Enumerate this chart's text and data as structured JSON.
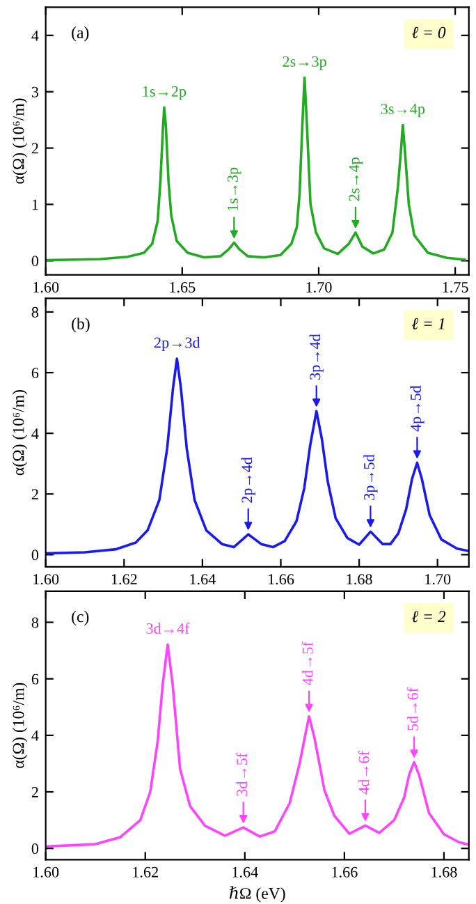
{
  "chart_data": [
    {
      "type": "line",
      "ylabel": "α(Ω) (10⁶/m)",
      "xlim": [
        1.6,
        1.755
      ],
      "ylim": [
        -0.25,
        4.5
      ],
      "xticks": [
        {
          "value": 1.6,
          "label": "1.60"
        },
        {
          "value": 1.65,
          "label": "1.65"
        },
        {
          "value": 1.7,
          "label": "1.70"
        },
        {
          "value": 1.75,
          "label": "1.75"
        }
      ],
      "yticks": [
        0,
        1,
        2,
        3,
        4
      ],
      "grid": false,
      "legend": false,
      "marker": "none",
      "line_style": "solid",
      "series": [
        {
          "color": "#22aa22",
          "x": [
            1.6,
            1.62,
            1.63,
            1.636,
            1.639,
            1.641,
            1.642,
            1.643,
            1.6434,
            1.644,
            1.645,
            1.646,
            1.648,
            1.652,
            1.658,
            1.664,
            1.667,
            1.669,
            1.671,
            1.674,
            1.68,
            1.686,
            1.69,
            1.692,
            1.693,
            1.694,
            1.6948,
            1.6955,
            1.697,
            1.699,
            1.702,
            1.707,
            1.711,
            1.7135,
            1.716,
            1.72,
            1.724,
            1.727,
            1.729,
            1.7302,
            1.7308,
            1.7315,
            1.733,
            1.735,
            1.74,
            1.747,
            1.7535
          ],
          "values": [
            0.01,
            0.03,
            0.07,
            0.14,
            0.3,
            0.7,
            1.4,
            2.4,
            2.72,
            2.4,
            1.4,
            0.8,
            0.35,
            0.14,
            0.06,
            0.08,
            0.2,
            0.32,
            0.2,
            0.08,
            0.06,
            0.1,
            0.3,
            0.6,
            1.2,
            2.4,
            3.25,
            2.6,
            1.0,
            0.5,
            0.22,
            0.12,
            0.3,
            0.5,
            0.25,
            0.13,
            0.2,
            0.5,
            1.3,
            2.0,
            2.41,
            2.0,
            1.0,
            0.45,
            0.14,
            0.05,
            0.02
          ]
        }
      ],
      "annotations": [
        "(a)",
        "ℓ = 0",
        {
          "text": "1s→2p",
          "x": 1.6434,
          "y": 2.72
        },
        {
          "text": "1s→3p",
          "x": 1.669,
          "y": 0.32
        },
        {
          "text": "2s→3p",
          "x": 1.6948,
          "y": 3.25
        },
        {
          "text": "2s→4p",
          "x": 1.7135,
          "y": 0.5
        },
        {
          "text": "3s→4p",
          "x": 1.7308,
          "y": 2.41
        }
      ]
    },
    {
      "type": "line",
      "ylabel": "α(Ω) (10⁶/m)",
      "xlim": [
        1.6,
        1.708
      ],
      "ylim": [
        -0.4,
        8.45
      ],
      "xticks": [
        {
          "value": 1.6,
          "label": "1.60"
        },
        {
          "value": 1.62,
          "label": "1.62"
        },
        {
          "value": 1.64,
          "label": "1.64"
        },
        {
          "value": 1.66,
          "label": "1.66"
        },
        {
          "value": 1.68,
          "label": "1.68"
        },
        {
          "value": 1.7,
          "label": "1.70"
        }
      ],
      "yticks": [
        0,
        2,
        4,
        6,
        8
      ],
      "grid": false,
      "legend": false,
      "marker": "none",
      "line_style": "solid",
      "series": [
        {
          "color": "#1a1aee",
          "x": [
            1.6,
            1.61,
            1.618,
            1.623,
            1.626,
            1.629,
            1.631,
            1.6325,
            1.6335,
            1.6345,
            1.636,
            1.638,
            1.641,
            1.645,
            1.648,
            1.6517,
            1.655,
            1.658,
            1.661,
            1.664,
            1.666,
            1.6675,
            1.6691,
            1.6705,
            1.672,
            1.674,
            1.677,
            1.68,
            1.6829,
            1.686,
            1.688,
            1.69,
            1.692,
            1.6935,
            1.6948,
            1.696,
            1.698,
            1.701,
            1.705,
            1.708
          ],
          "values": [
            0.04,
            0.08,
            0.18,
            0.4,
            0.8,
            1.8,
            3.5,
            5.5,
            6.46,
            5.5,
            3.5,
            1.8,
            0.8,
            0.35,
            0.25,
            0.67,
            0.35,
            0.25,
            0.45,
            1.1,
            2.2,
            3.6,
            4.73,
            3.8,
            2.4,
            1.2,
            0.55,
            0.33,
            0.76,
            0.35,
            0.35,
            0.7,
            1.5,
            2.5,
            3.03,
            2.5,
            1.3,
            0.5,
            0.2,
            0.12
          ]
        }
      ],
      "annotations": [
        "(b)",
        "ℓ = 1",
        {
          "text": "2p→3d",
          "x": 1.6335,
          "y": 6.46
        },
        {
          "text": "2p→4d",
          "x": 1.6517,
          "y": 0.67
        },
        {
          "text": "3p→4d",
          "x": 1.6691,
          "y": 4.73
        },
        {
          "text": "3p→5d",
          "x": 1.6829,
          "y": 0.76
        },
        {
          "text": "4p→5d",
          "x": 1.6948,
          "y": 3.03
        }
      ]
    },
    {
      "type": "line",
      "xlabel": "ℏΩ (eV)",
      "ylabel": "α(Ω) (10⁶/m)",
      "xlim": [
        1.6,
        1.685
      ],
      "ylim": [
        -0.4,
        9.1
      ],
      "xticks": [
        {
          "value": 1.6,
          "label": "1.60"
        },
        {
          "value": 1.62,
          "label": "1.62"
        },
        {
          "value": 1.64,
          "label": "1.64"
        },
        {
          "value": 1.66,
          "label": "1.66"
        },
        {
          "value": 1.68,
          "label": "1.68"
        }
      ],
      "yticks": [
        0,
        2,
        4,
        6,
        8
      ],
      "grid": false,
      "legend": false,
      "marker": "none",
      "line_style": "solid",
      "series": [
        {
          "color": "#ff44ff",
          "x": [
            1.6,
            1.61,
            1.615,
            1.619,
            1.621,
            1.6225,
            1.6235,
            1.6245,
            1.6255,
            1.627,
            1.629,
            1.632,
            1.636,
            1.6397,
            1.643,
            1.646,
            1.649,
            1.651,
            1.652,
            1.6529,
            1.654,
            1.656,
            1.658,
            1.661,
            1.6642,
            1.667,
            1.67,
            1.672,
            1.673,
            1.674,
            1.675,
            1.677,
            1.68,
            1.683,
            1.685
          ],
          "values": [
            0.07,
            0.15,
            0.4,
            1.0,
            2.0,
            3.8,
            5.8,
            7.21,
            5.8,
            2.8,
            1.5,
            0.8,
            0.45,
            0.74,
            0.42,
            0.6,
            1.6,
            3.0,
            3.9,
            4.67,
            3.9,
            2.05,
            1.15,
            0.52,
            0.81,
            0.55,
            1.0,
            1.8,
            2.6,
            3.05,
            2.6,
            1.25,
            0.5,
            0.22,
            0.13
          ]
        }
      ],
      "annotations": [
        "(c)",
        "ℓ = 2",
        {
          "text": "3d→4f",
          "x": 1.6245,
          "y": 7.21
        },
        {
          "text": "3d→5f",
          "x": 1.6397,
          "y": 0.74
        },
        {
          "text": "4d→5f",
          "x": 1.6529,
          "y": 4.67
        },
        {
          "text": "4d→6f",
          "x": 1.6642,
          "y": 0.81
        },
        {
          "text": "5d→6f",
          "x": 1.674,
          "y": 3.05
        }
      ]
    }
  ]
}
